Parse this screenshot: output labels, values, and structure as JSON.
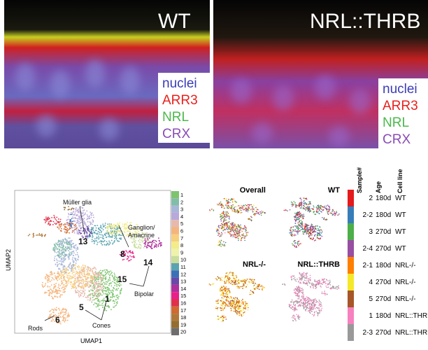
{
  "micrographs": [
    {
      "title": "WT",
      "legend": [
        "nuclei",
        "ARR3",
        "NRL",
        "CRX"
      ]
    },
    {
      "title": "NRL::THRB",
      "legend": [
        "nuclei",
        "ARR3",
        "NRL",
        "CRX"
      ]
    }
  ],
  "legend_colors": [
    "#3b3bb8",
    "#e8201c",
    "#4cb84c",
    "#8a4cb8"
  ],
  "umap": {
    "xlabel": "UMAP1",
    "ylabel": "UMAP2",
    "annotations": [
      "Müller glia",
      "13",
      "Ganglion/\nAmacrine",
      "8",
      "14",
      "15",
      "Bipolar",
      "1",
      "5",
      "Cones",
      "6",
      "Rods"
    ],
    "colorbar": {
      "labels": [
        "1",
        "2",
        "3",
        "4",
        "5",
        "6",
        "7",
        "8",
        "9",
        "10",
        "11",
        "12",
        "13",
        "14",
        "15",
        "16",
        "17",
        "18",
        "19",
        "20"
      ],
      "colors": [
        "#7ec46e",
        "#82bda8",
        "#a8b6d8",
        "#b9a8da",
        "#e6b9ad",
        "#f5b47c",
        "#f7cf7e",
        "#f3ec88",
        "#eef3aa",
        "#c9dd9c",
        "#5aa4b0",
        "#3b70b8",
        "#6a48a8",
        "#b02f9c",
        "#e8208a",
        "#e1304a",
        "#d06a30",
        "#b07838",
        "#946e30",
        "#6e6e6e"
      ]
    }
  },
  "subpanels": [
    "Overall",
    "WT",
    "NRL-/-",
    "NRL::THRB"
  ],
  "sample_table": {
    "headers": [
      "Sample#",
      "Age",
      "Cell line"
    ],
    "rows": [
      {
        "sample": "2",
        "age": "180d",
        "line": "WT",
        "color": "#e41a1c"
      },
      {
        "sample": "2-2",
        "age": "180d",
        "line": "WT",
        "color": "#377eb8"
      },
      {
        "sample": "3",
        "age": "270d",
        "line": "WT",
        "color": "#4daf4a"
      },
      {
        "sample": "2-4",
        "age": "270d",
        "line": "WT",
        "color": "#984ea3"
      },
      {
        "sample": "2-1",
        "age": "180d",
        "line": "NRL-/-",
        "color": "#ff7f00"
      },
      {
        "sample": "4",
        "age": "270d",
        "line": "NRL-/-",
        "color": "#f5e82a"
      },
      {
        "sample": "5",
        "age": "270d",
        "line": "NRL-/-",
        "color": "#a65628"
      },
      {
        "sample": "1",
        "age": "180d",
        "line": "NRL::THRB",
        "color": "#f781bf"
      },
      {
        "sample": "2-3",
        "age": "270d",
        "line": "NRL::THRB",
        "color": "#999999"
      }
    ]
  }
}
